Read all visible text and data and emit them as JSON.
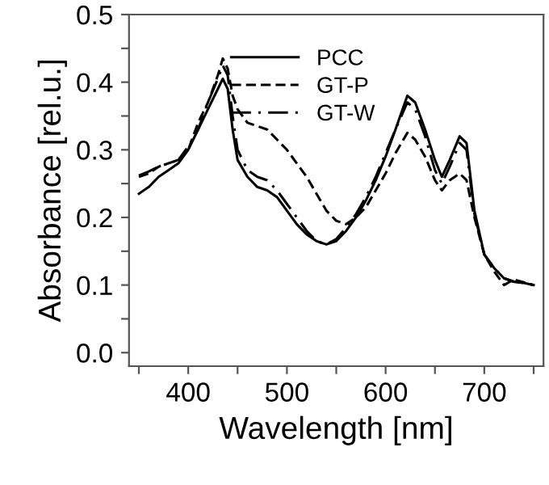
{
  "chart_data": {
    "type": "line",
    "xlabel": "Wavelength [nm]",
    "ylabel": "Absorbance [rel.u.]",
    "xlim": [
      340,
      760
    ],
    "ylim": [
      -0.02,
      0.5
    ],
    "xticks": [
      {
        "value": 350,
        "label": null
      },
      400,
      {
        "value": 450,
        "label": null
      },
      500,
      {
        "value": 550,
        "label": null
      },
      600,
      {
        "value": 650,
        "label": null
      },
      700,
      {
        "value": 750,
        "label": null
      }
    ],
    "yticks": [
      {
        "value": 0,
        "label": "0.0"
      },
      {
        "value": 0.05,
        "label": null
      },
      0.1,
      {
        "value": 0.15,
        "label": null
      },
      0.2,
      {
        "value": 0.25,
        "label": null
      },
      0.3,
      {
        "value": 0.35,
        "label": null
      },
      0.4,
      {
        "value": 0.45,
        "label": null
      },
      0.5
    ],
    "legend": "top",
    "grid": false,
    "x": [
      350,
      360,
      370,
      380,
      390,
      400,
      410,
      420,
      430,
      435,
      440,
      445,
      450,
      460,
      470,
      480,
      490,
      500,
      510,
      520,
      530,
      540,
      550,
      560,
      570,
      580,
      590,
      600,
      610,
      622,
      630,
      640,
      650,
      657,
      665,
      675,
      682,
      690,
      700,
      710,
      720,
      730,
      740,
      750
    ],
    "series": [
      {
        "name": "PCC",
        "color": "#000000",
        "line_style": "solid",
        "values": [
          0.235,
          0.245,
          0.26,
          0.27,
          0.28,
          0.3,
          0.33,
          0.36,
          0.39,
          0.405,
          0.39,
          0.33,
          0.285,
          0.26,
          0.245,
          0.24,
          0.23,
          0.21,
          0.19,
          0.175,
          0.165,
          0.16,
          0.165,
          0.18,
          0.2,
          0.225,
          0.255,
          0.29,
          0.33,
          0.38,
          0.37,
          0.33,
          0.285,
          0.26,
          0.285,
          0.32,
          0.31,
          0.21,
          0.145,
          0.125,
          0.11,
          0.105,
          0.103,
          0.1
        ]
      },
      {
        "name": "GT-P",
        "color": "#000000",
        "line_style": "dashed",
        "values": [
          0.26,
          0.265,
          0.275,
          0.28,
          0.285,
          0.3,
          0.34,
          0.37,
          0.41,
          0.435,
          0.42,
          0.38,
          0.36,
          0.34,
          0.335,
          0.33,
          0.315,
          0.3,
          0.28,
          0.26,
          0.235,
          0.21,
          0.195,
          0.19,
          0.2,
          0.215,
          0.24,
          0.265,
          0.295,
          0.325,
          0.315,
          0.29,
          0.255,
          0.24,
          0.255,
          0.265,
          0.255,
          0.2,
          0.145,
          0.12,
          0.1,
          0.108,
          0.104,
          0.1
        ]
      },
      {
        "name": "GT-W",
        "color": "#000000",
        "line_style": "dashdot",
        "values": [
          0.262,
          0.268,
          0.275,
          0.28,
          0.285,
          0.305,
          0.33,
          0.37,
          0.405,
          0.425,
          0.41,
          0.35,
          0.3,
          0.27,
          0.26,
          0.255,
          0.24,
          0.22,
          0.2,
          0.18,
          0.165,
          0.16,
          0.168,
          0.185,
          0.205,
          0.23,
          0.26,
          0.295,
          0.33,
          0.37,
          0.36,
          0.32,
          0.27,
          0.25,
          0.275,
          0.31,
          0.3,
          0.205,
          0.145,
          0.125,
          0.11,
          0.105,
          0.103,
          0.1
        ]
      }
    ]
  }
}
